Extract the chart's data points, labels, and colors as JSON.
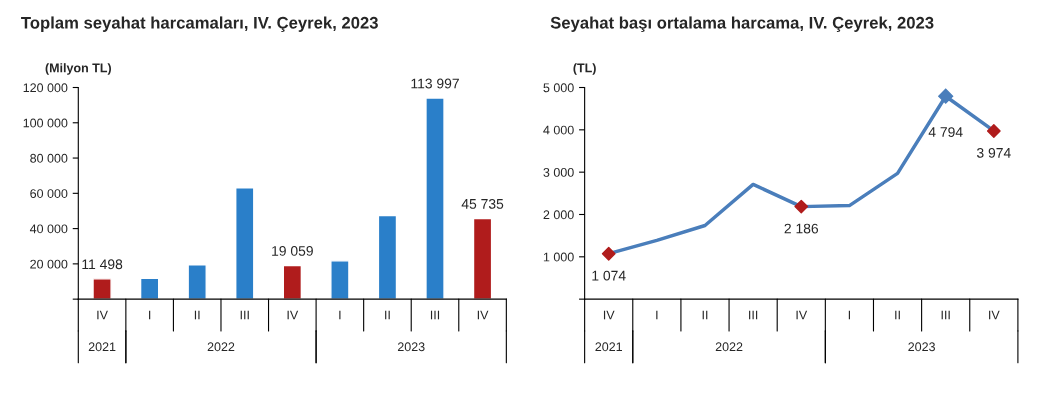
{
  "chart_data": [
    {
      "type": "bar",
      "title": "Toplam seyahat harcamaları, IV. Çeyrek, 2023",
      "ylabel": "(Milyon TL)",
      "categories": [
        "IV",
        "I",
        "II",
        "III",
        "IV",
        "I",
        "II",
        "III",
        "IV"
      ],
      "annotations": [
        "2021",
        "2022",
        "2023"
      ],
      "values": [
        11498,
        11800,
        19400,
        63200,
        19059,
        21700,
        47400,
        113997,
        45735
      ],
      "colors": [
        "#b01c1c",
        "#2a7fc9",
        "#2a7fc9",
        "#2a7fc9",
        "#b01c1c",
        "#2a7fc9",
        "#2a7fc9",
        "#2a7fc9",
        "#b01c1c"
      ],
      "value_labels": [
        "11 498",
        null,
        null,
        null,
        "19 059",
        null,
        null,
        "113 997",
        "45 735"
      ],
      "ylim": [
        0,
        120000
      ],
      "yticks": [
        {
          "value": 0,
          "label": null
        },
        {
          "value": 20000,
          "label": "20 000"
        },
        {
          "value": 40000,
          "label": "40 000"
        },
        {
          "value": 60000,
          "label": "60 000"
        },
        {
          "value": 80000,
          "label": "80 000"
        },
        {
          "value": 100000,
          "label": "100 000"
        },
        {
          "value": 120000,
          "label": "120 000"
        }
      ],
      "grid": false,
      "legend": false
    },
    {
      "type": "line",
      "title": "Seyahat başı ortalama harcama, IV. Çeyrek, 2023",
      "ylabel": "(TL)",
      "categories": [
        "IV",
        "I",
        "II",
        "III",
        "IV",
        "I",
        "II",
        "III",
        "IV"
      ],
      "annotations": [
        "2021",
        "2022",
        "2023"
      ],
      "series": [
        {
          "color": "#4a7ebb",
          "values": [
            1074,
            1390,
            1740,
            2710,
            2186,
            2210,
            2970,
            4794,
            3974
          ],
          "colors": [
            "#b01c1c",
            null,
            null,
            null,
            "#b01c1c",
            null,
            null,
            "#4a7ebb",
            "#b01c1c"
          ],
          "value_labels": [
            "1 074",
            null,
            null,
            null,
            "2 186",
            null,
            null,
            "4 794",
            "3 974"
          ]
        }
      ],
      "line_style": "solid",
      "ylim": [
        0,
        5000
      ],
      "yticks": [
        {
          "value": 0,
          "label": null
        },
        {
          "value": 1000,
          "label": "1 000"
        },
        {
          "value": 2000,
          "label": "2 000"
        },
        {
          "value": 3000,
          "label": "3 000"
        },
        {
          "value": 4000,
          "label": "4 000"
        },
        {
          "value": 5000,
          "label": "5 000"
        }
      ],
      "grid": false,
      "legend": false
    }
  ]
}
